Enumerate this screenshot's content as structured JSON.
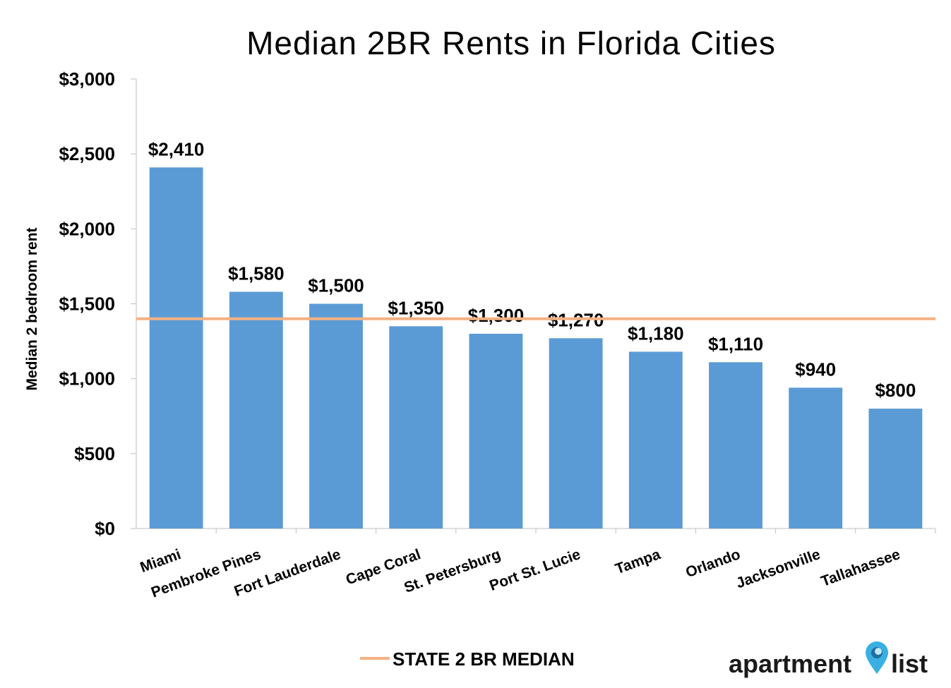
{
  "chart_data": {
    "type": "bar",
    "title": "Median 2BR Rents in Florida Cities",
    "ylabel": "Median 2 bedroom rent",
    "xlabel": "",
    "ylim": [
      0,
      3000
    ],
    "y_ticks": [
      0,
      500,
      1000,
      1500,
      2000,
      2500,
      3000
    ],
    "y_tick_labels": [
      "$0",
      "$500",
      "$1,000",
      "$1,500",
      "$2,000",
      "$2,500",
      "$3,000"
    ],
    "categories": [
      "Miami",
      "Pembroke Pines",
      "Fort Lauderdale",
      "Cape Coral",
      "St. Petersburg",
      "Port St. Lucie",
      "Tampa",
      "Orlando",
      "Jacksonville",
      "Tallahassee"
    ],
    "values": [
      2410,
      1580,
      1500,
      1350,
      1300,
      1270,
      1180,
      1110,
      940,
      800
    ],
    "data_labels": [
      "$2,410",
      "$1,580",
      "$1,500",
      "$1,350",
      "$1,300",
      "$1,270",
      "$1,180",
      "$1,110",
      "$940",
      "$800"
    ],
    "reference_line": {
      "name": "STATE 2 BR MEDIAN",
      "value": 1400
    },
    "legend_position": "bottom-center",
    "grid": false,
    "colors": {
      "bar": "#5b9bd5",
      "reference_line": "#f4b183",
      "axis": "#bfbfbf"
    }
  },
  "logo": {
    "left_text": "apartment",
    "right_text": "list",
    "pin_color": "#3ab0e2"
  }
}
